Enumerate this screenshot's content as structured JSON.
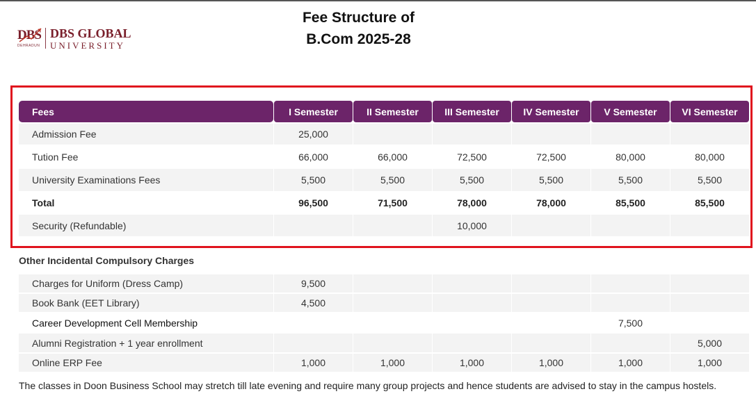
{
  "logo": {
    "mark": "DBS",
    "mark_sub": "DEHRADUN",
    "line1": "DBS GLOBAL",
    "line2": "UNIVERSITY"
  },
  "title": {
    "line1": "Fee Structure of",
    "line2": "B.Com 2025-28"
  },
  "fee_table": {
    "headers": [
      "Fees",
      "I Semester",
      "II Semester",
      "III Semester",
      "IV Semester",
      "V Semester",
      "VI Semester"
    ],
    "rows": [
      {
        "label": "Admission Fee",
        "values": [
          "25,000",
          "",
          "",
          "",
          "",
          ""
        ]
      },
      {
        "label": "Tution Fee",
        "values": [
          "66,000",
          "66,000",
          "72,500",
          "72,500",
          "80,000",
          "80,000"
        ]
      },
      {
        "label": "University Examinations Fees",
        "values": [
          "5,500",
          "5,500",
          "5,500",
          "5,500",
          "5,500",
          "5,500"
        ]
      },
      {
        "label": "Total",
        "values": [
          "96,500",
          "71,500",
          "78,000",
          "78,000",
          "85,500",
          "85,500"
        ]
      },
      {
        "label": "Security (Refundable)",
        "values": [
          "",
          "",
          "10,000",
          "",
          "",
          ""
        ]
      }
    ]
  },
  "other_charges": {
    "title": "Other Incidental Compulsory Charges",
    "rows": [
      {
        "label": "Charges for Uniform (Dress Camp)",
        "values": [
          "9,500",
          "",
          "",
          "",
          "",
          ""
        ]
      },
      {
        "label": "Book Bank (EET Library)",
        "values": [
          "4,500",
          "",
          "",
          "",
          "",
          ""
        ]
      },
      {
        "label": "Career Development Cell Membership",
        "values": [
          "",
          "",
          "",
          "",
          "7,500",
          ""
        ]
      },
      {
        "label": "Alumni Registration + 1 year enrollment",
        "values": [
          "",
          "",
          "",
          "",
          "",
          "5,000"
        ]
      },
      {
        "label": "Online ERP Fee",
        "values": [
          "1,000",
          "1,000",
          "1,000",
          "1,000",
          "1,000",
          "1,000"
        ]
      }
    ]
  },
  "note": "The classes in Doon Business School may stretch till late evening and require many group projects and hence students are advised to stay in the campus hostels."
}
